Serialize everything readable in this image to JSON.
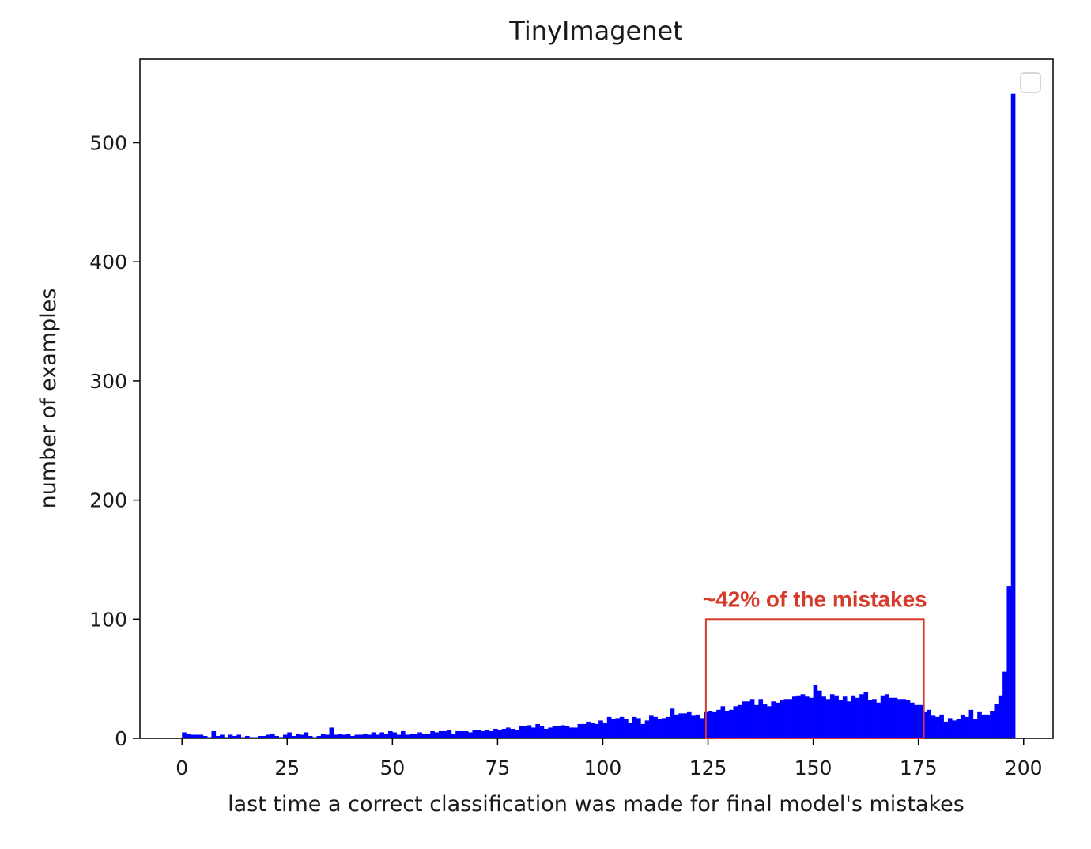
{
  "chart_data": {
    "type": "bar",
    "title": "TinyImagenet",
    "xlabel": "last time a correct classification was made for final model's mistakes",
    "ylabel": "number of examples",
    "xlim": [
      -10,
      207
    ],
    "ylim": [
      0,
      570
    ],
    "xticks": [
      0,
      25,
      50,
      75,
      100,
      125,
      150,
      175,
      200
    ],
    "xtick_labels": [
      "0",
      "25",
      "50",
      "75",
      "100",
      "125",
      "150",
      "175",
      "200"
    ],
    "yticks": [
      0,
      100,
      200,
      300,
      400,
      500
    ],
    "ytick_labels": [
      "0",
      "100",
      "200",
      "300",
      "400",
      "500"
    ],
    "grid": false,
    "bar_color": "#0000ff",
    "bin_start": 0,
    "bin_width": 1,
    "values": [
      5,
      4,
      3,
      3,
      3,
      2,
      1,
      6,
      2,
      3,
      1,
      3,
      2,
      3,
      1,
      2,
      1,
      1,
      2,
      2,
      3,
      4,
      2,
      1,
      3,
      5,
      2,
      4,
      3,
      5,
      2,
      1,
      2,
      4,
      3,
      9,
      3,
      4,
      3,
      4,
      2,
      3,
      3,
      4,
      3,
      5,
      3,
      5,
      4,
      6,
      5,
      3,
      6,
      3,
      4,
      4,
      5,
      4,
      4,
      6,
      5,
      6,
      6,
      7,
      4,
      6,
      6,
      6,
      5,
      7,
      7,
      6,
      7,
      6,
      8,
      7,
      8,
      9,
      8,
      7,
      10,
      10,
      11,
      9,
      12,
      10,
      8,
      9,
      10,
      10,
      11,
      10,
      9,
      9,
      12,
      12,
      14,
      13,
      12,
      15,
      13,
      18,
      16,
      17,
      18,
      16,
      13,
      18,
      17,
      12,
      15,
      19,
      18,
      16,
      17,
      18,
      25,
      20,
      21,
      21,
      22,
      19,
      20,
      17,
      22,
      23,
      22,
      24,
      27,
      23,
      24,
      27,
      28,
      31,
      31,
      33,
      28,
      33,
      29,
      27,
      31,
      30,
      32,
      33,
      33,
      35,
      36,
      37,
      35,
      34,
      45,
      40,
      35,
      33,
      37,
      36,
      32,
      35,
      31,
      36,
      34,
      37,
      39,
      32,
      33,
      30,
      36,
      37,
      34,
      34,
      33,
      33,
      32,
      30,
      28,
      28,
      22,
      24,
      19,
      18,
      20,
      14,
      17,
      15,
      16,
      20,
      18,
      24,
      16,
      22,
      20,
      20,
      23,
      29,
      36,
      56,
      128,
      541,
      0,
      0
    ],
    "annotations": [
      {
        "text": "~42% of the mistakes",
        "color": "#d63a2a",
        "x_range": [
          124.5,
          176.3
        ],
        "y_range": [
          0,
          100
        ]
      }
    ],
    "legend": {
      "placement": "top-right",
      "entries": []
    }
  }
}
